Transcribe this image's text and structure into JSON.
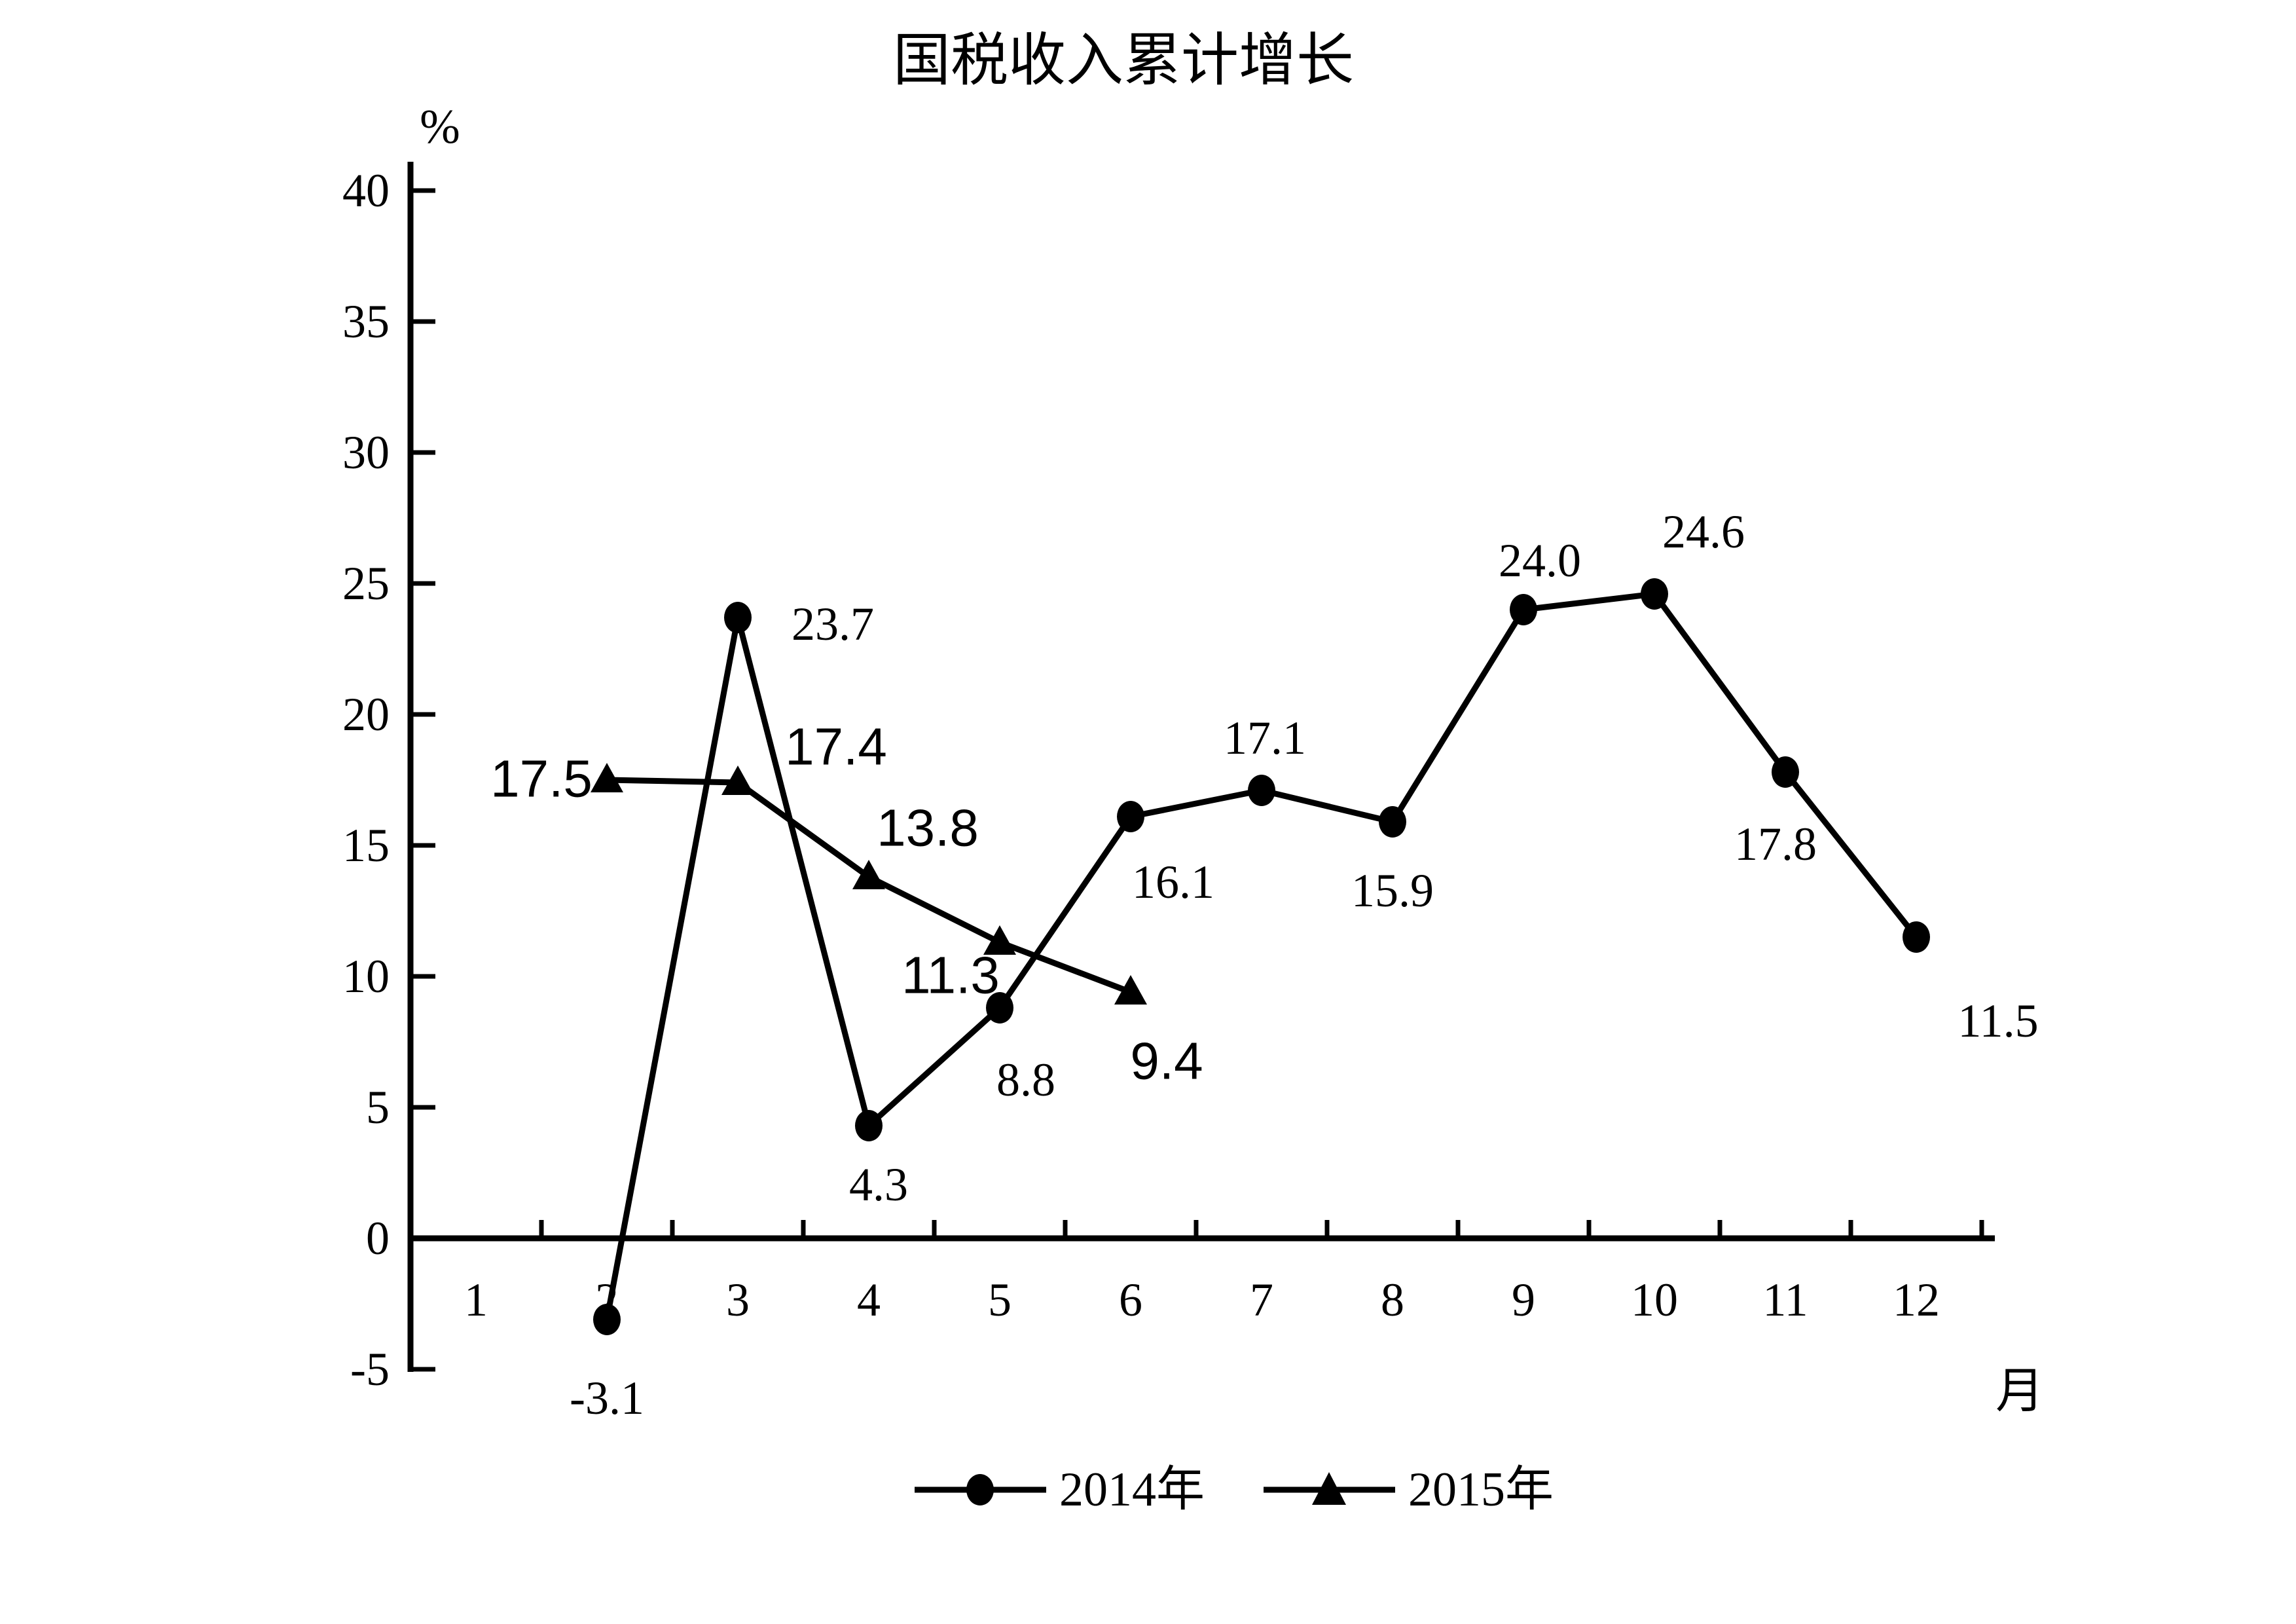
{
  "title": "国税收入累计增长",
  "y_unit": "%",
  "x_unit": "月",
  "colors": {
    "ink": "#000000",
    "background": "#ffffff"
  },
  "legend": {
    "items": [
      {
        "label": "2014年",
        "marker": "circle"
      },
      {
        "label": "2015年",
        "marker": "triangle"
      }
    ]
  },
  "chart_data": {
    "type": "line",
    "title": "国税收入累计增长",
    "xlabel": "月",
    "ylabel": "%",
    "x_ticks": [
      1,
      2,
      3,
      4,
      5,
      6,
      7,
      8,
      9,
      10,
      11,
      12
    ],
    "y_ticks": [
      40,
      35,
      30,
      25,
      20,
      15,
      10,
      5,
      0,
      -5
    ],
    "ylim": [
      -5,
      40
    ],
    "grid": false,
    "legend_position": "bottom",
    "series": [
      {
        "name": "2014年",
        "key": "series-2014",
        "marker": "circle",
        "points": [
          {
            "x": 2,
            "y": -3.1,
            "label": "-3.1",
            "label_dx": 0,
            "label_dy": 120
          },
          {
            "x": 3,
            "y": 23.7,
            "label": "23.7",
            "label_dx": 145,
            "label_dy": 10
          },
          {
            "x": 4,
            "y": 4.3,
            "label": "4.3",
            "label_dx": 15,
            "label_dy": 90
          },
          {
            "x": 5,
            "y": 8.8,
            "label": "8.8",
            "label_dx": 40,
            "label_dy": 110
          },
          {
            "x": 6,
            "y": 16.1,
            "label": "16.1",
            "label_dx": 65,
            "label_dy": 100
          },
          {
            "x": 7,
            "y": 17.1,
            "label": "17.1",
            "label_dx": 5,
            "label_dy": -80
          },
          {
            "x": 8,
            "y": 15.9,
            "label": "15.9",
            "label_dx": 0,
            "label_dy": 105
          },
          {
            "x": 9,
            "y": 24.0,
            "label": "24.0",
            "label_dx": 25,
            "label_dy": -75
          },
          {
            "x": 10,
            "y": 24.6,
            "label": "24.6",
            "label_dx": 75,
            "label_dy": -95
          },
          {
            "x": 11,
            "y": 17.8,
            "label": "17.8",
            "label_dx": -15,
            "label_dy": 110
          },
          {
            "x": 12,
            "y": 11.5,
            "label": "11.5",
            "label_dx": 125,
            "label_dy": 128
          }
        ]
      },
      {
        "name": "2015年",
        "key": "series-2015",
        "marker": "triangle",
        "points": [
          {
            "x": 2,
            "y": 17.5,
            "label": "17.5",
            "label_dx": -100,
            "label_dy": -2
          },
          {
            "x": 3,
            "y": 17.4,
            "label": "17.4",
            "label_dx": 150,
            "label_dy": -55
          },
          {
            "x": 4,
            "y": 13.8,
            "label": "13.8",
            "label_dx": 90,
            "label_dy": -75
          },
          {
            "x": 5,
            "y": 11.3,
            "label": "11.3",
            "label_dx": -75,
            "label_dy": 50
          },
          {
            "x": 6,
            "y": 9.4,
            "label": "9.4",
            "label_dx": 55,
            "label_dy": 105
          }
        ]
      }
    ]
  }
}
